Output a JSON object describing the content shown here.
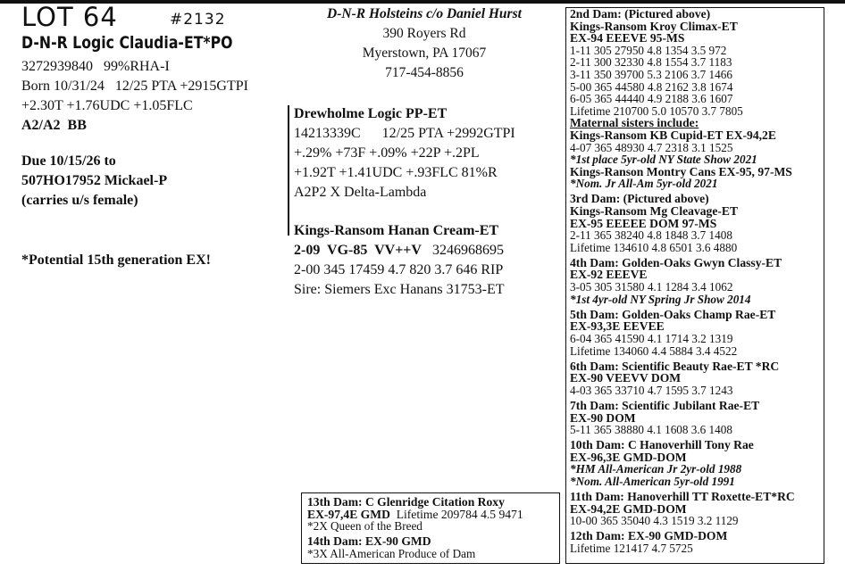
{
  "header": {
    "lot": "LOT 64",
    "number": "#2132",
    "name": "D-N-R Logic Claudia-ET*PO"
  },
  "animal": {
    "lines": [
      {
        "text": "3272939840   99%RHA-I",
        "style": "normal"
      },
      {
        "text": "Born 10/31/24   12/25 PTA +2915GTPI",
        "style": "normal"
      },
      {
        "text": "+2.30T +1.76UDC +1.05FLC",
        "style": "normal"
      },
      {
        "text": "A2/A2  BB",
        "style": "bold"
      }
    ]
  },
  "due": {
    "lines": [
      "Due 10/15/26 to",
      "507HO17952 Mickael-P",
      "(carries u/s female)"
    ]
  },
  "potential": "*Potential 15th generation EX!",
  "owner": {
    "name": "D-N-R Holsteins c/o Daniel Hurst",
    "address": "390 Royers Rd",
    "city": "Myerstown, PA 17067",
    "phone": "717-454-8856"
  },
  "sire": {
    "name": "Drewholme Logic PP-ET",
    "lines": [
      "14213339C      12/25 PTA +2992GTPI",
      "+.29% +73F +.09% +22P +.2PL",
      "+1.92T +1.41UDC +.93FLC 81%R",
      "A2P2 X Delta-Lambda"
    ]
  },
  "dam": {
    "name": "Kings-Ransom Hanan Cream-ET",
    "classification": "2-09  VG-85  VV++V",
    "id": "3246968695",
    "lines": [
      "2-00 345 17459 4.7 820 3.7 646 RIP",
      "Sire: Siemers Exc Hanans 31753-ET"
    ]
  },
  "pedigree": [
    {
      "lines": [
        {
          "text": "2nd Dam: (Pictured above)",
          "style": "bold"
        },
        {
          "text": "Kings-Ransom Kroy Climax-ET",
          "style": "bold"
        },
        {
          "text": "EX-94  EEEVE  95-MS",
          "style": "bold"
        },
        {
          "text": "1-11 305 27950 4.8 1354 3.5   972",
          "style": "normal"
        },
        {
          "text": "2-11 300 32330 4.8 1554 3.7 1183",
          "style": "normal"
        },
        {
          "text": "3-11 350 39700 5.3 2106 3.7 1466",
          "style": "normal"
        },
        {
          "text": "5-00 365 44580 4.8 2162 3.8 1674",
          "style": "normal"
        },
        {
          "text": "6-05 365 44440 4.9 2188 3.6 1607",
          "style": "normal"
        },
        {
          "text": "Lifetime 210700 5.0 10570 3.7 7805",
          "style": "normal"
        },
        {
          "text": "Maternal sisters include:",
          "style": "under"
        },
        {
          "text": "Kings-Ransom KB Cupid-ET  EX-94,2E",
          "style": "bold"
        },
        {
          "text": "4-07 365 48930 4.7 2318 3.1 1525",
          "style": "normal"
        },
        {
          "text": "*1st place 5yr-old NY State Show 2021",
          "style": "ital"
        },
        {
          "text": "Kings-Ranson Montry Cans EX-95, 97-MS",
          "style": "bold"
        },
        {
          "text": "*Nom. Jr All-Am 5yr-old 2021",
          "style": "ital"
        }
      ]
    },
    {
      "lines": [
        {
          "text": "3rd Dam:  (Pictured above)",
          "style": "bold"
        },
        {
          "text": "Kings-Ransom Mg Cleavage-ET",
          "style": "bold"
        },
        {
          "text": "EX-95  EEEEE  DOM  97-MS",
          "style": "bold"
        },
        {
          "text": "2-11 365 38240 4.8 1848 3.7 1408",
          "style": "normal"
        },
        {
          "text": "Lifetime 134610 4.8 6501 3.6 4880",
          "style": "normal"
        }
      ]
    },
    {
      "lines": [
        {
          "text": "4th Dam: Golden-Oaks Gwyn Classy-ET",
          "style": "bold"
        },
        {
          "text": "EX-92  EEEVE",
          "style": "bold"
        },
        {
          "text": "3-05 305 31580 4.1 1284 3.4 1062",
          "style": "normal"
        },
        {
          "text": "*1st 4yr-old NY Spring Jr Show 2014",
          "style": "ital"
        }
      ]
    },
    {
      "lines": [
        {
          "text": "5th Dam: Golden-Oaks Champ Rae-ET",
          "style": "bold"
        },
        {
          "text": "EX-93,3E  EEVEE",
          "style": "bold"
        },
        {
          "text": "6-04 365 41590 4.1 1714 3.2 1319",
          "style": "normal"
        },
        {
          "text": "Lifetime 134060 4.4 5884 3.4 4522",
          "style": "normal"
        }
      ]
    },
    {
      "lines": [
        {
          "text": "6th Dam: Scientific Beauty Rae-ET *RC",
          "style": "bold"
        },
        {
          "text": "EX-90  VEEVV  DOM",
          "style": "bold"
        },
        {
          "text": "4-03 365 33710 4.7 1595 3.7 1243",
          "style": "normal"
        }
      ]
    },
    {
      "lines": [
        {
          "text": "7th Dam: Scientific Jubilant Rae-ET",
          "style": "bold"
        },
        {
          "text": "EX-90  DOM",
          "style": "bold"
        },
        {
          "text": "5-11 365 38880 4.1 1608 3.6 1408",
          "style": "normal"
        }
      ]
    },
    {
      "lines": [
        {
          "text": "10th Dam: C Hanoverhill Tony Rae",
          "style": "bold"
        },
        {
          "text": "EX-96,3E  GMD-DOM",
          "style": "bold"
        },
        {
          "text": "*HM All-American Jr 2yr-old 1988",
          "style": "ital"
        },
        {
          "text": "*Nom. All-American 5yr-old 1991",
          "style": "ital"
        }
      ]
    },
    {
      "lines": [
        {
          "text": "11th Dam: Hanoverhill TT Roxette-ET*RC",
          "style": "bold"
        },
        {
          "text": "EX-94,2E  GMD-DOM",
          "style": "bold"
        },
        {
          "text": "10-00 365 35040 4.3 1519 3.2 1129",
          "style": "normal"
        }
      ]
    },
    {
      "lines": [
        {
          "text": "12th Dam: EX-90 GMD-DOM",
          "style": "bold"
        },
        {
          "text": "Lifetime 121417 4.7 5725",
          "style": "normal"
        }
      ]
    }
  ],
  "bottom": [
    {
      "lines": [
        {
          "text": "13th Dam: C Glenridge Citation Roxy",
          "style": "bold"
        },
        {
          "text": "EX-97,4E  GMD",
          "style": "bold",
          "suffix": "  Lifetime 209784 4.5 9471"
        },
        {
          "text": "*2X Queen of the Breed",
          "style": "normal"
        }
      ]
    },
    {
      "lines": [
        {
          "text": "14th Dam: EX-90 GMD",
          "style": "bold"
        },
        {
          "text": "*3X All-American Produce of Dam",
          "style": "normal"
        }
      ]
    }
  ]
}
